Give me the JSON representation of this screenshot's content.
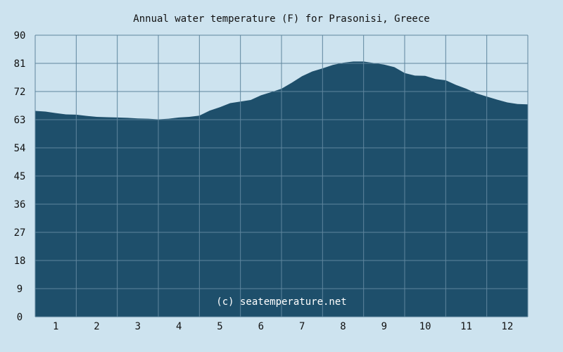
{
  "chart_data": {
    "type": "area",
    "title": "Annual water temperature (F) for Prasonisi, Greece",
    "xlabel": "",
    "ylabel": "",
    "ylim": [
      0,
      90
    ],
    "yticks": [
      "0",
      "9",
      "18",
      "27",
      "36",
      "45",
      "54",
      "63",
      "72",
      "81",
      "90"
    ],
    "categories": [
      "1",
      "2",
      "3",
      "4",
      "5",
      "6",
      "7",
      "8",
      "9",
      "10",
      "11",
      "12"
    ],
    "xlim": [
      0.5,
      12.5
    ],
    "grid": true,
    "watermark": "(c) seatemperature.net",
    "colors": {
      "background": "#cde3ef",
      "fill": "#1e4f6b",
      "grid": "#5f869e"
    },
    "series": [
      {
        "x": [
          0.5,
          0.75,
          1.0,
          1.25,
          1.5,
          1.75,
          2.0,
          2.25,
          2.5,
          2.75,
          3.0,
          3.25,
          3.5,
          3.75,
          4.0,
          4.25,
          4.5,
          4.75,
          5.0,
          5.25,
          5.5,
          5.75,
          6.0,
          6.25,
          6.5,
          6.75,
          7.0,
          7.25,
          7.5,
          7.75,
          8.0,
          8.25,
          8.5,
          8.75,
          9.0,
          9.25,
          9.5,
          9.75,
          10.0,
          10.25,
          10.5,
          10.75,
          11.0,
          11.25,
          11.5,
          11.75,
          12.0,
          12.25,
          12.5
        ],
        "values": [
          65.8,
          65.6,
          65.1,
          64.7,
          64.6,
          64.2,
          63.9,
          63.8,
          63.7,
          63.6,
          63.4,
          63.3,
          63.1,
          63.3,
          63.7,
          63.9,
          64.3,
          65.9,
          67.0,
          68.3,
          68.8,
          69.3,
          70.8,
          71.8,
          72.9,
          74.8,
          76.9,
          78.4,
          79.4,
          80.5,
          81.2,
          81.6,
          81.6,
          81.1,
          80.6,
          79.8,
          77.9,
          77.1,
          77.0,
          76.0,
          75.6,
          74.1,
          72.9,
          71.4,
          70.4,
          69.4,
          68.5,
          68.0,
          67.9
        ]
      }
    ]
  }
}
